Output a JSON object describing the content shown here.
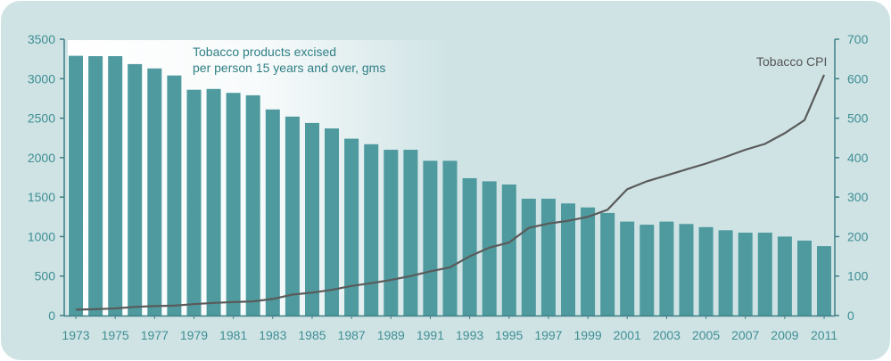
{
  "colors": {
    "panel": "#cfe3e5",
    "bar": "#4e9a9e",
    "line": "#5a5a5a",
    "axis": "#3d7f84",
    "tick_text": "#3f8f93"
  },
  "chart_data": {
    "type": "bar",
    "title": "",
    "annotations": {
      "bars": [
        "Tobacco products excised",
        "per person 15 years and over, gms"
      ],
      "line": "Tobacco CPI"
    },
    "x": [
      1973,
      1974,
      1975,
      1976,
      1977,
      1978,
      1979,
      1980,
      1981,
      1982,
      1983,
      1984,
      1985,
      1986,
      1987,
      1988,
      1989,
      1990,
      1991,
      1992,
      1993,
      1994,
      1995,
      1996,
      1997,
      1998,
      1999,
      2000,
      2001,
      2002,
      2003,
      2004,
      2005,
      2006,
      2007,
      2008,
      2009,
      2010,
      2011
    ],
    "x_tick_labels": [
      "1973",
      "1975",
      "1977",
      "1979",
      "1981",
      "1983",
      "1985",
      "1987",
      "1989",
      "1991",
      "1993",
      "1995",
      "1997",
      "1999",
      "2001",
      "2003",
      "2005",
      "2007",
      "2009",
      "2011"
    ],
    "left_axis": {
      "ylim": [
        0,
        3500
      ],
      "ticks": [
        "0",
        "500",
        "1000",
        "1500",
        "2000",
        "2500",
        "3000",
        "3500"
      ]
    },
    "right_axis": {
      "ylim": [
        0,
        700
      ],
      "ticks": [
        "0",
        "100",
        "200",
        "300",
        "400",
        "500",
        "600",
        "700"
      ]
    },
    "series": [
      {
        "type": "bar",
        "axis": "left",
        "values": [
          3290,
          3285,
          3285,
          3185,
          3130,
          3040,
          2860,
          2870,
          2820,
          2790,
          2610,
          2520,
          2440,
          2370,
          2240,
          2170,
          2100,
          2100,
          1960,
          1960,
          1740,
          1700,
          1660,
          1480,
          1480,
          1420,
          1370,
          1300,
          1190,
          1150,
          1190,
          1160,
          1120,
          1080,
          1050,
          1050,
          1000,
          950,
          880
        ]
      },
      {
        "type": "line",
        "axis": "right",
        "values": [
          15,
          16,
          18,
          22,
          24,
          25,
          29,
          32,
          34,
          36,
          42,
          53,
          58,
          65,
          75,
          82,
          90,
          100,
          112,
          122,
          150,
          172,
          185,
          222,
          233,
          240,
          250,
          268,
          320,
          340,
          355,
          370,
          385,
          402,
          420,
          435,
          462,
          495,
          610
        ]
      }
    ],
    "grid": false,
    "legend": "none"
  }
}
